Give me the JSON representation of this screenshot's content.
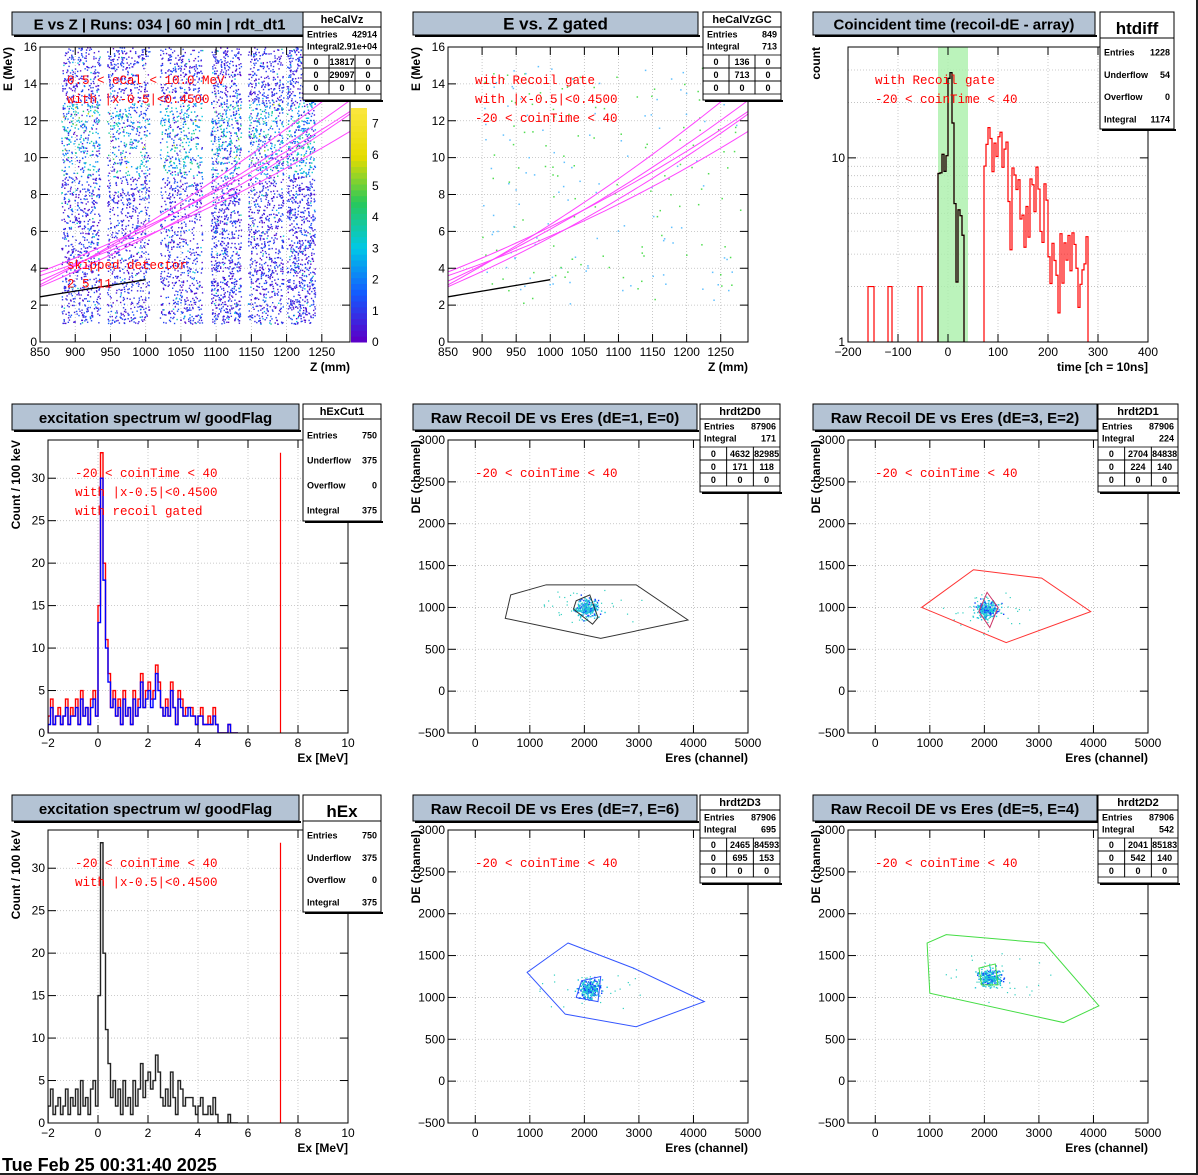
{
  "timestamp": "Tue Feb 25 00:31:40 2025",
  "colors": {
    "frame": "#000000",
    "title_bg": "#b4c3d4",
    "cut_text": "#ff0000",
    "grid": "#bbbbbb",
    "mag": "#ff44ff",
    "gate_green": "#aaf0aa"
  },
  "panels": [
    {
      "id": "heCalVz",
      "title": "E vs Z | Runs: 034 | 60 min | rdt_dt1",
      "stats": {
        "name": "heCalVz",
        "rows": [
          [
            "Entries",
            "42914"
          ],
          [
            "Integral",
            "2.91e+04"
          ]
        ],
        "grid": [
          [
            "0",
            "13817",
            "0"
          ],
          [
            "0",
            "29097",
            "0"
          ],
          [
            "0",
            "0",
            "0"
          ]
        ]
      },
      "annotations": [
        "0.5 < eCal < 10.0 MeV",
        "with |x-0.5|<0.4500"
      ],
      "extra_text": [
        "skipped detector",
        "2",
        "5",
        "11"
      ],
      "chart_data": {
        "type": "heatmap",
        "xlabel": "Z (mm)",
        "ylabel": "E (MeV)",
        "xlim": [
          850,
          1290
        ],
        "ylim": [
          0,
          16
        ],
        "xticks": [
          "850",
          "900",
          "950",
          "1000",
          "1050",
          "1100",
          "1150",
          "1200",
          "1250"
        ],
        "yticks": [
          "0",
          "2",
          "4",
          "6",
          "8",
          "10",
          "12",
          "14",
          "16"
        ],
        "zlim": [
          0,
          7.5
        ],
        "zticks": [
          "0",
          "1",
          "2",
          "3",
          "4",
          "5",
          "6",
          "7"
        ],
        "detector_columns": [
          [
            880,
            935
          ],
          [
            945,
            1005
          ],
          [
            1020,
            1080
          ],
          [
            1092,
            1135
          ],
          [
            1145,
            1195
          ],
          [
            1200,
            1240
          ]
        ],
        "kinematic_lines": true
      }
    },
    {
      "id": "heCalVzGC",
      "title": "E vs. Z gated",
      "stats": {
        "name": "heCalVzGC",
        "rows": [
          [
            "Entries",
            "849"
          ],
          [
            "Integral",
            "713"
          ]
        ],
        "grid": [
          [
            "0",
            "136",
            "0"
          ],
          [
            "0",
            "713",
            "0"
          ],
          [
            "0",
            "0",
            "0"
          ]
        ]
      },
      "annotations": [
        "with Recoil gate",
        "with |x-0.5|<0.4500",
        "-20 < coinTime < 40"
      ],
      "chart_data": {
        "type": "scatter",
        "xlabel": "Z (mm)",
        "ylabel": "E (MeV)",
        "xlim": [
          850,
          1290
        ],
        "ylim": [
          0,
          16
        ],
        "xticks": [
          "850",
          "900",
          "950",
          "1000",
          "1050",
          "1100",
          "1150",
          "1200",
          "1250"
        ],
        "yticks": [
          "0",
          "2",
          "4",
          "6",
          "8",
          "10",
          "12",
          "14",
          "16"
        ],
        "kinematic_lines": true
      }
    },
    {
      "id": "htdiff",
      "title": "Coincident time (recoil-dE - array)",
      "stats": {
        "name": "htdiff",
        "rows": [
          [
            "Entries",
            "1228"
          ],
          [
            "Underflow",
            "54"
          ],
          [
            "Overflow",
            "0"
          ],
          [
            "Integral",
            "1174"
          ]
        ]
      },
      "annotations": [
        "with Recoil gate",
        "-20 < coinTime < 40"
      ],
      "chart_data": {
        "type": "line",
        "scale_y": "log",
        "xlabel": "time [ch = 10ns]",
        "ylabel": "count",
        "xlim": [
          -200,
          400
        ],
        "ylim": [
          1,
          40
        ],
        "xticks": [
          "-200",
          "-100",
          "0",
          "100",
          "200",
          "300",
          "400"
        ],
        "yticks": [
          "1",
          "10"
        ],
        "gate": [
          -20,
          40
        ]
      }
    },
    {
      "id": "hExCut1",
      "title": "excitation spectrum w/ goodFlag",
      "stats": {
        "name": "hExCut1",
        "rows": [
          [
            "Entries",
            "750"
          ],
          [
            "Underflow",
            "375"
          ],
          [
            "Overflow",
            "0"
          ],
          [
            "Integral",
            "375"
          ]
        ]
      },
      "annotations": [
        "-20 < coinTime < 40",
        "with |x-0.5|<0.4500",
        "with recoil gated"
      ],
      "chart_data": {
        "type": "line",
        "xlabel": "Ex [MeV]",
        "ylabel": "Count / 100 keV",
        "xlim": [
          -2,
          10
        ],
        "ylim": [
          0,
          34.5
        ],
        "xticks": [
          "-2",
          "0",
          "2",
          "4",
          "6",
          "8",
          "10"
        ],
        "yticks": [
          "0",
          "5",
          "10",
          "15",
          "20",
          "25",
          "30"
        ],
        "marker_x": 7.3,
        "series": [
          {
            "color": "#ff0000",
            "x_start": -2,
            "bin": 0.1,
            "values": [
              2,
              4,
              1,
              2,
              3,
              1,
              2,
              4,
              1,
              3,
              2,
              4,
              1,
              5,
              2,
              3,
              1,
              4,
              5,
              2,
              15,
              33,
              20,
              11,
              7,
              3,
              5,
              2,
              4,
              1,
              5,
              2,
              3,
              1,
              5,
              2,
              4,
              7,
              3,
              5,
              6,
              4,
              5,
              8,
              6,
              3,
              2,
              4,
              2,
              6,
              3,
              1,
              5,
              4,
              2,
              3,
              3,
              3,
              2,
              1,
              2,
              3,
              1,
              1,
              2,
              1,
              3,
              1,
              0,
              0,
              0,
              0,
              1,
              0,
              0,
              0
            ]
          },
          {
            "color": "#0000ff",
            "x_start": -2,
            "bin": 0.1,
            "values": [
              1,
              3,
              1,
              2,
              2,
              1,
              2,
              3,
              1,
              2,
              2,
              3,
              1,
              4,
              2,
              3,
              1,
              3,
              4,
              2,
              13,
              30,
              18,
              10,
              6,
              3,
              4,
              2,
              3,
              1,
              4,
              2,
              3,
              1,
              4,
              2,
              3,
              6,
              3,
              4,
              5,
              3,
              4,
              7,
              5,
              3,
              2,
              3,
              2,
              5,
              3,
              1,
              4,
              3,
              2,
              2,
              3,
              2,
              2,
              1,
              2,
              2,
              1,
              1,
              1,
              1,
              2,
              1,
              0,
              0,
              0,
              0,
              1,
              0,
              0,
              0
            ]
          }
        ]
      }
    },
    {
      "id": "hrdt2D0",
      "title": "Raw Recoil DE vs Eres (dE=1, E=0)",
      "stats": {
        "name": "hrdt2D0",
        "rows": [
          [
            "Entries",
            "87906"
          ],
          [
            "Integral",
            "171"
          ]
        ],
        "grid": [
          [
            "0",
            "4632",
            "82985"
          ],
          [
            "0",
            "171",
            "118"
          ],
          [
            "0",
            "0",
            "0"
          ]
        ]
      },
      "annotations": [
        "-20 < coinTime < 40"
      ],
      "chart_data": {
        "type": "scatter",
        "xlabel": "Eres (channel)",
        "ylabel": "DE (channel)",
        "xlim": [
          -500,
          5000
        ],
        "ylim": [
          -500,
          3000
        ],
        "xticks": [
          "0",
          "1000",
          "2000",
          "3000",
          "4000",
          "5000"
        ],
        "yticks": [
          "-500",
          "0",
          "500",
          "1000",
          "1500",
          "2000",
          "2500",
          "3000"
        ],
        "cluster": [
          2050,
          1000
        ],
        "outer_cut": {
          "color": "#333333",
          "points": [
            [
              1300,
              1270
            ],
            [
              2950,
              1270
            ],
            [
              3900,
              850
            ],
            [
              2300,
              630
            ],
            [
              550,
              870
            ],
            [
              650,
              1150
            ]
          ]
        },
        "inner_cut": {
          "color": "#333333",
          "points": [
            [
              1850,
              1080
            ],
            [
              2100,
              1150
            ],
            [
              2250,
              880
            ],
            [
              2150,
              800
            ],
            [
              1800,
              980
            ]
          ]
        }
      }
    },
    {
      "id": "hrdt2D1",
      "title": "Raw Recoil DE vs Eres (dE=3, E=2)",
      "stats": {
        "name": "hrdt2D1",
        "rows": [
          [
            "Entries",
            "87906"
          ],
          [
            "Integral",
            "224"
          ]
        ],
        "grid": [
          [
            "0",
            "2704",
            "84838"
          ],
          [
            "0",
            "224",
            "140"
          ],
          [
            "0",
            "0",
            "0"
          ]
        ]
      },
      "annotations": [
        "-20 < coinTime < 40"
      ],
      "chart_data": {
        "type": "scatter",
        "xlabel": "Eres (channel)",
        "ylabel": "DE (channel)",
        "xlim": [
          -500,
          5000
        ],
        "ylim": [
          -500,
          3000
        ],
        "xticks": [
          "0",
          "1000",
          "2000",
          "3000",
          "4000",
          "5000"
        ],
        "yticks": [
          "-500",
          "0",
          "500",
          "1000",
          "1500",
          "2000",
          "2500",
          "3000"
        ],
        "cluster": [
          2050,
          980
        ],
        "outer_cut": {
          "color": "#ff3333",
          "points": [
            [
              1800,
              1450
            ],
            [
              3050,
              1350
            ],
            [
              3950,
              950
            ],
            [
              2400,
              580
            ],
            [
              850,
              1000
            ]
          ]
        },
        "inner_cut": {
          "color": "#cc3366",
          "points": [
            [
              2050,
              1180
            ],
            [
              2250,
              1000
            ],
            [
              2100,
              760
            ],
            [
              1900,
              950
            ]
          ]
        }
      }
    },
    {
      "id": "hEx",
      "title": "excitation spectrum w/ goodFlag",
      "stats": {
        "name": "hEx",
        "rows": [
          [
            "Entries",
            "750"
          ],
          [
            "Underflow",
            "375"
          ],
          [
            "Overflow",
            "0"
          ],
          [
            "Integral",
            "375"
          ]
        ]
      },
      "annotations": [
        "-20 < coinTime < 40",
        "with |x-0.5|<0.4500"
      ],
      "chart_data": {
        "type": "line",
        "xlabel": "Ex [MeV]",
        "ylabel": "Count / 100 keV",
        "xlim": [
          -2,
          10
        ],
        "ylim": [
          0,
          34.5
        ],
        "xticks": [
          "-2",
          "0",
          "2",
          "4",
          "6",
          "8",
          "10"
        ],
        "yticks": [
          "0",
          "5",
          "10",
          "15",
          "20",
          "25",
          "30"
        ],
        "marker_x": 7.3,
        "series": [
          {
            "color": "#222222",
            "x_start": -2,
            "bin": 0.1,
            "values": [
              2,
              4,
              1,
              2,
              3,
              1,
              2,
              4,
              1,
              3,
              2,
              4,
              1,
              5,
              2,
              3,
              1,
              4,
              5,
              2,
              15,
              33,
              20,
              11,
              7,
              3,
              5,
              2,
              4,
              1,
              5,
              2,
              3,
              1,
              5,
              2,
              4,
              7,
              3,
              5,
              6,
              4,
              5,
              8,
              6,
              3,
              2,
              4,
              2,
              6,
              3,
              1,
              5,
              4,
              2,
              3,
              3,
              3,
              2,
              1,
              2,
              3,
              1,
              1,
              2,
              1,
              3,
              1,
              0,
              0,
              0,
              0,
              1,
              0,
              0,
              0
            ]
          }
        ]
      }
    },
    {
      "id": "hrdt2D3",
      "title": "Raw Recoil DE vs Eres (dE=7, E=6)",
      "stats": {
        "name": "hrdt2D3",
        "rows": [
          [
            "Entries",
            "87906"
          ],
          [
            "Integral",
            "695"
          ]
        ],
        "grid": [
          [
            "0",
            "2465",
            "84593"
          ],
          [
            "0",
            "695",
            "153"
          ],
          [
            "0",
            "0",
            "0"
          ]
        ]
      },
      "annotations": [
        "-20 < coinTime < 40"
      ],
      "chart_data": {
        "type": "scatter",
        "xlabel": "Eres (channel)",
        "ylabel": "DE (channel)",
        "xlim": [
          -500,
          5000
        ],
        "ylim": [
          -500,
          3000
        ],
        "xticks": [
          "0",
          "1000",
          "2000",
          "3000",
          "4000",
          "5000"
        ],
        "yticks": [
          "-500",
          "0",
          "500",
          "1000",
          "1500",
          "2000",
          "2500",
          "3000"
        ],
        "cluster": [
          2100,
          1100
        ],
        "outer_cut": {
          "color": "#3355ff",
          "points": [
            [
              1700,
              1650
            ],
            [
              2900,
              1350
            ],
            [
              4200,
              950
            ],
            [
              2950,
              650
            ],
            [
              1650,
              800
            ],
            [
              950,
              1300
            ]
          ]
        },
        "inner_cut": {
          "color": "#3355ff",
          "points": [
            [
              1950,
              1200
            ],
            [
              2300,
              1250
            ],
            [
              2250,
              950
            ],
            [
              1850,
              1000
            ]
          ]
        }
      }
    },
    {
      "id": "hrdt2D2",
      "title": "Raw Recoil DE vs Eres (dE=5, E=4)",
      "stats": {
        "name": "hrdt2D2",
        "rows": [
          [
            "Entries",
            "87906"
          ],
          [
            "Integral",
            "542"
          ]
        ],
        "grid": [
          [
            "0",
            "2041",
            "85183"
          ],
          [
            "0",
            "542",
            "140"
          ],
          [
            "0",
            "0",
            "0"
          ]
        ]
      },
      "annotations": [
        "-20 < coinTime < 40"
      ],
      "chart_data": {
        "type": "scatter",
        "xlabel": "Eres (channel)",
        "ylabel": "DE (channel)",
        "xlim": [
          -500,
          5000
        ],
        "ylim": [
          -500,
          3000
        ],
        "xticks": [
          "0",
          "1000",
          "2000",
          "3000",
          "4000",
          "5000"
        ],
        "yticks": [
          "-500",
          "0",
          "500",
          "1000",
          "1500",
          "2000",
          "2500",
          "3000"
        ],
        "cluster": [
          2100,
          1250
        ],
        "outer_cut": {
          "color": "#44dd44",
          "points": [
            [
              1300,
              1750
            ],
            [
              3100,
              1650
            ],
            [
              4100,
              900
            ],
            [
              3450,
              700
            ],
            [
              1000,
              1050
            ],
            [
              950,
              1650
            ]
          ]
        },
        "inner_cut": {
          "color": "#44dd44",
          "points": [
            [
              1900,
              1350
            ],
            [
              2200,
              1400
            ],
            [
              2250,
              1150
            ],
            [
              1950,
              1150
            ]
          ]
        }
      }
    }
  ]
}
